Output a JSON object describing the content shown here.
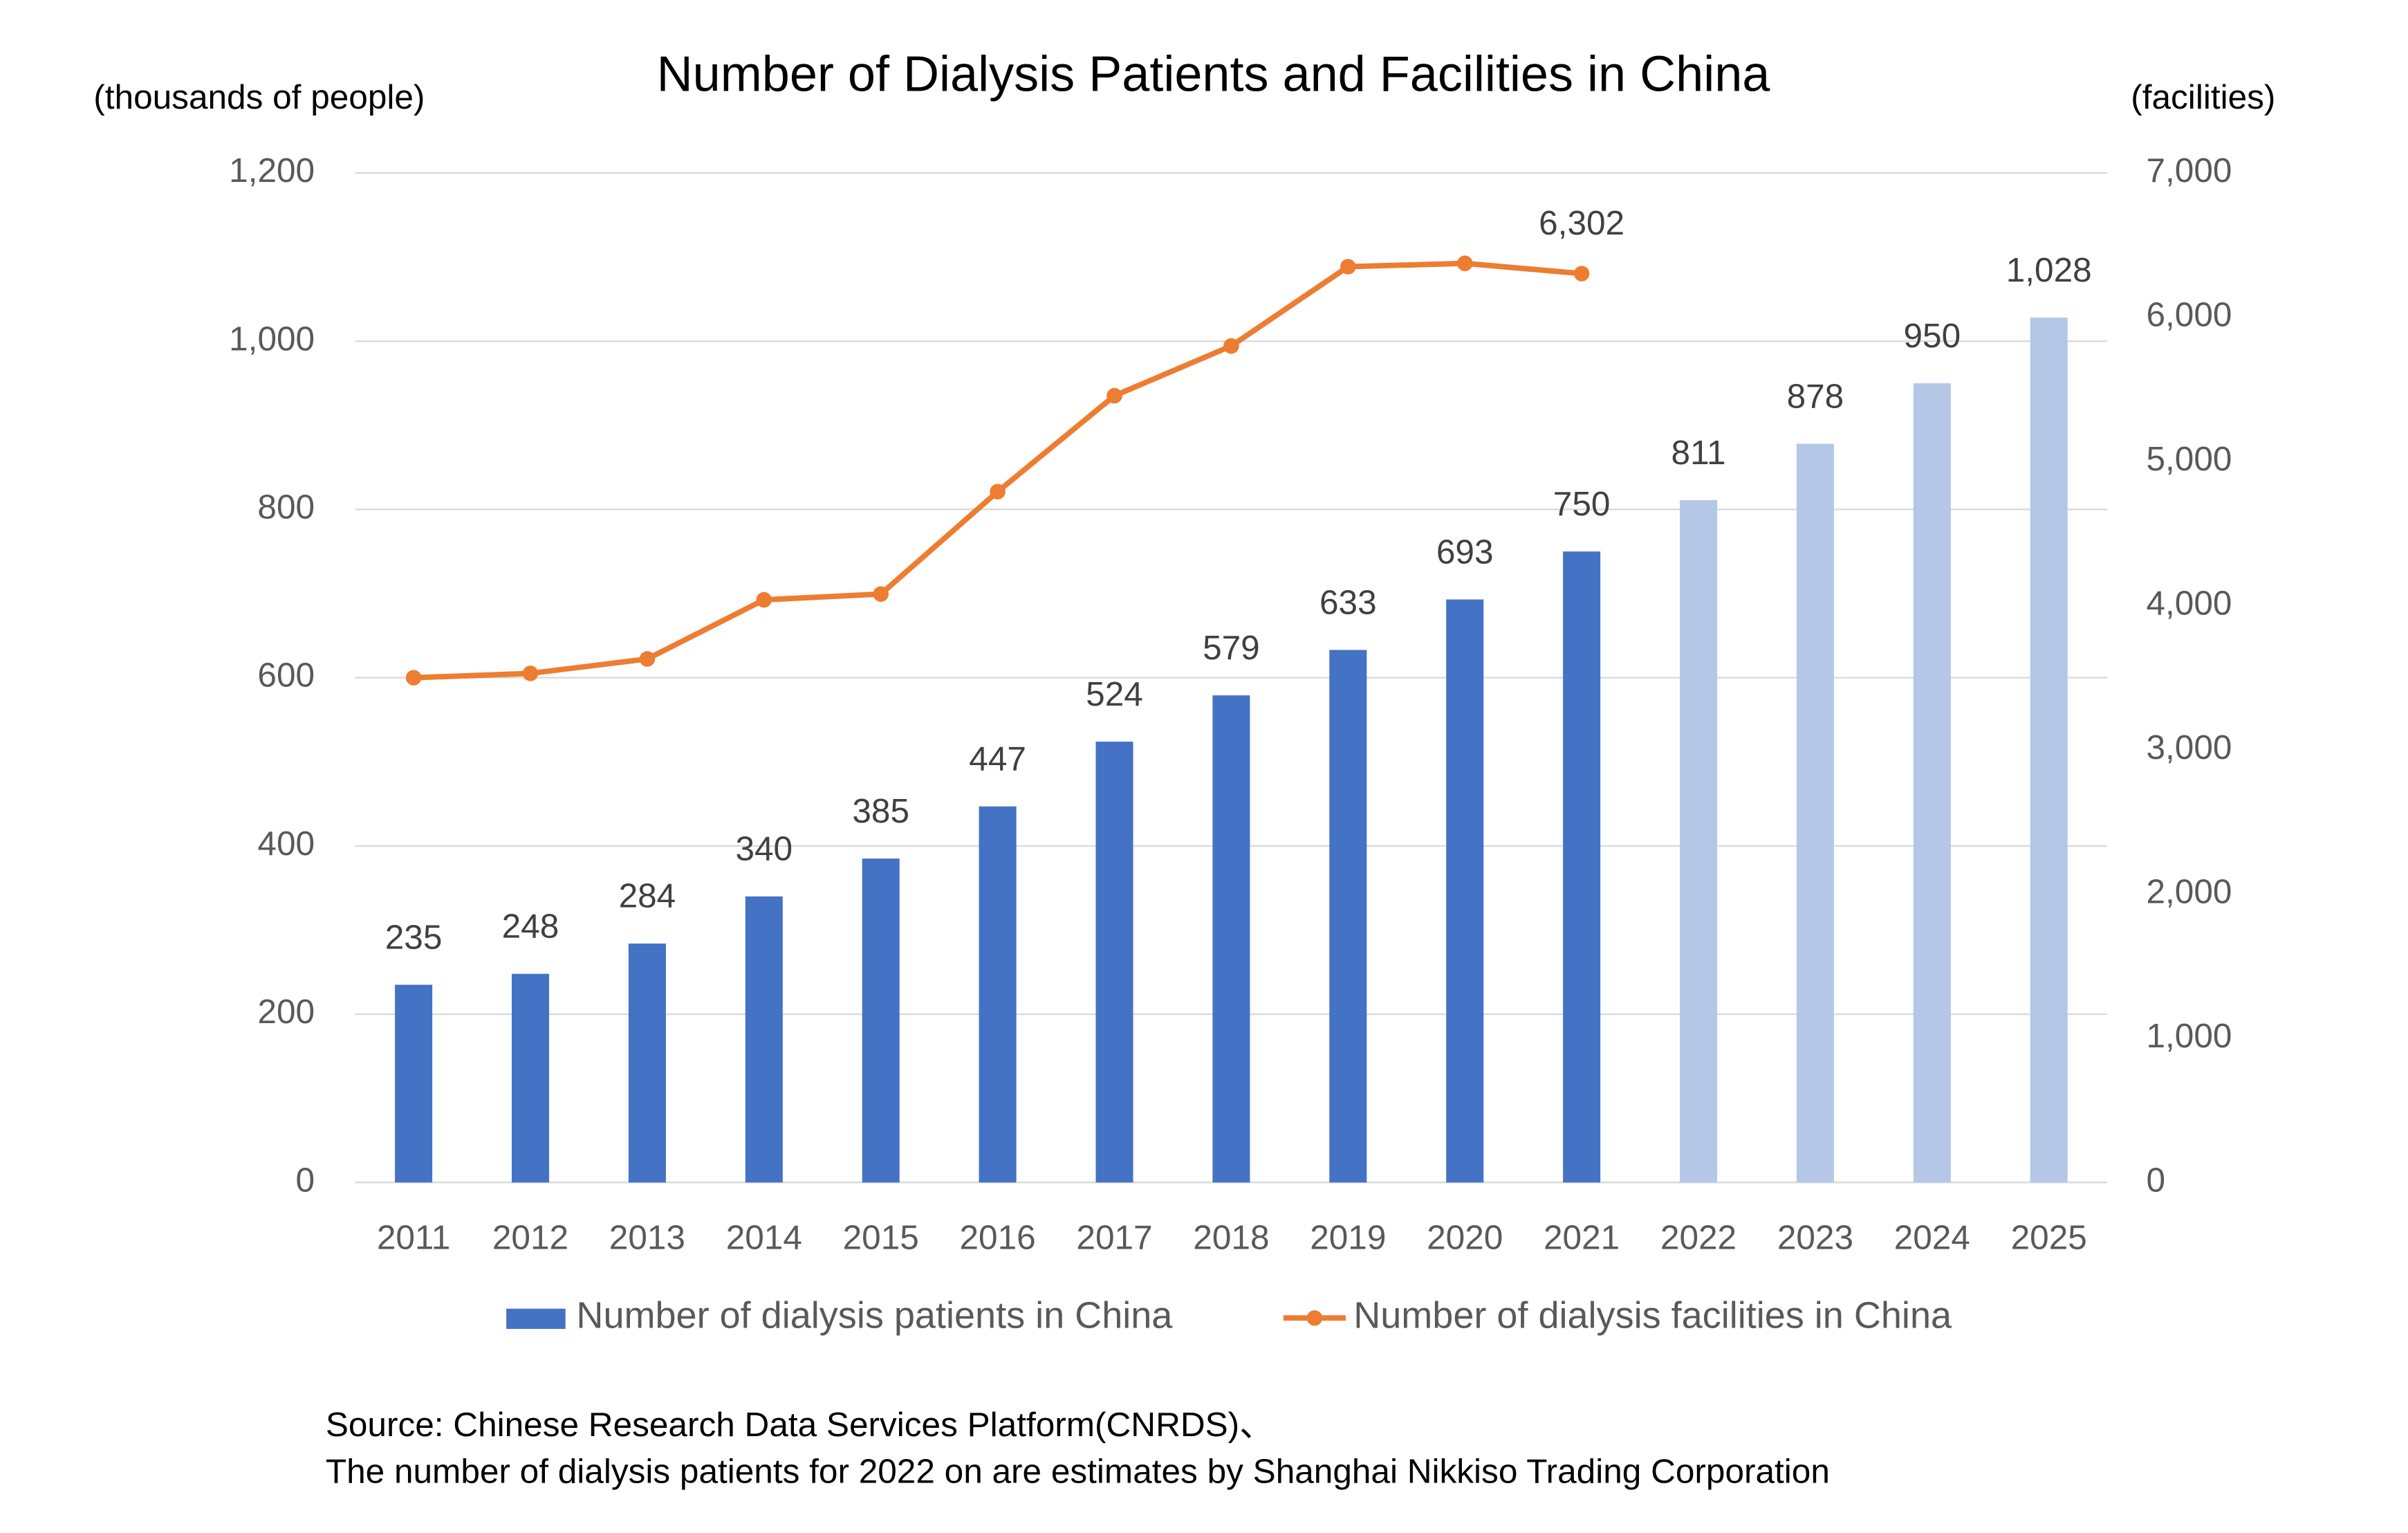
{
  "chart_data": {
    "type": "bar-line",
    "title": "Number of Dialysis Patients and Facilities in China",
    "ylabel": "(thousands of people)",
    "y2label": "(facilities)",
    "source": [
      "Source: Chinese Research Data Services Platform(CNRDS)、",
      "The number of dialysis patients for 2022 on are estimates by Shanghai Nikkiso Trading Corporation"
    ],
    "categories": [
      "2011",
      "2012",
      "2013",
      "2014",
      "2015",
      "2016",
      "2017",
      "2018",
      "2019",
      "2020",
      "2021",
      "2022",
      "2023",
      "2024",
      "2025"
    ],
    "series": [
      {
        "name": "Number of dialysis patients in China",
        "type": "bar",
        "color": "#4472c4",
        "colors": [
          "#4472c4",
          "#4472c4",
          "#4472c4",
          "#4472c4",
          "#4472c4",
          "#4472c4",
          "#4472c4",
          "#4472c4",
          "#4472c4",
          "#4472c4",
          "#4472c4",
          "#b4c7e7",
          "#b4c7e7",
          "#b4c7e7",
          "#b4c7e7"
        ],
        "values": [
          235,
          248,
          284,
          340,
          385,
          447,
          524,
          579,
          633,
          693,
          750,
          811,
          878,
          950,
          1028
        ],
        "value_labels": [
          "235",
          "248",
          "284",
          "340",
          "385",
          "447",
          "524",
          "579",
          "633",
          "693",
          "750",
          "811",
          "878",
          "950",
          "1,028"
        ]
      },
      {
        "name": "Number of dialysis facilities in China",
        "type": "line",
        "color": "#ed7d31",
        "axis": "y2",
        "values": [
          3500,
          3530,
          3630,
          4040,
          4080,
          4790,
          5455,
          5800,
          6350,
          6373,
          6302,
          null,
          null,
          null,
          null
        ],
        "value_labels": [
          null,
          null,
          null,
          null,
          null,
          null,
          null,
          null,
          null,
          null,
          "6,302",
          null,
          null,
          null,
          null
        ]
      }
    ],
    "ylim": [
      0,
      1200
    ],
    "yticks": [
      0,
      200,
      400,
      600,
      800,
      {
        "value": 1000,
        "label": "1,000"
      },
      {
        "value": 1200,
        "label": "1,200"
      }
    ],
    "y2lim": [
      0,
      7000
    ],
    "y2ticks": [
      0,
      {
        "value": 1000,
        "label": "1,000"
      },
      {
        "value": 2000,
        "label": "2,000"
      },
      {
        "value": 3000,
        "label": "3,000"
      },
      {
        "value": 4000,
        "label": "4,000"
      },
      {
        "value": 5000,
        "label": "5,000"
      },
      {
        "value": 6000,
        "label": "6,000"
      },
      {
        "value": 7000,
        "label": "7,000"
      }
    ],
    "grid": true,
    "legend": "bottom"
  }
}
